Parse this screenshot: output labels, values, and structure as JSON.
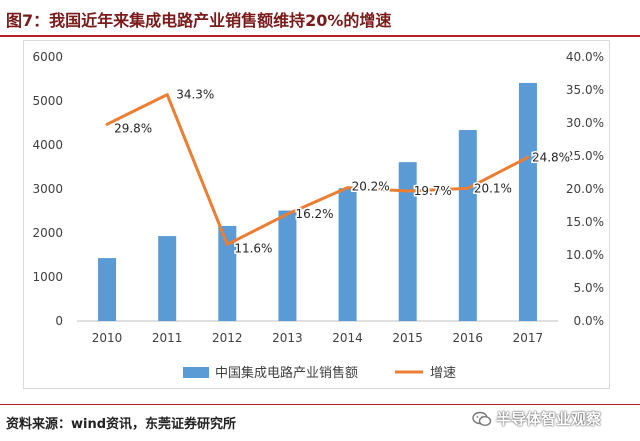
{
  "page": {
    "title": "图7：我国近年来集成电路产业销售额维持20%的增速",
    "source": "资料来源：wind资讯，东莞证券研究所",
    "watermark": "半导体智业观察"
  },
  "colors": {
    "bar": "#5b9bd5",
    "line": "#ed7d31",
    "title_rule": "#b8231f"
  },
  "chart_data": {
    "type": "bar",
    "categories": [
      "2010",
      "2011",
      "2012",
      "2013",
      "2014",
      "2015",
      "2016",
      "2017"
    ],
    "series": [
      {
        "name": "中国集成电路产业销售额",
        "type": "bar",
        "axis": "left",
        "values": [
          1430,
          1930,
          2160,
          2510,
          3020,
          3610,
          4340,
          5410
        ]
      },
      {
        "name": "增速",
        "type": "line",
        "axis": "right",
        "values": [
          29.8,
          34.3,
          11.6,
          16.2,
          20.2,
          19.7,
          20.1,
          24.8
        ],
        "labels": [
          "29.8%",
          "34.3%",
          "11.6%",
          "16.2%",
          "20.2%",
          "19.7%",
          "20.1%",
          "24.8%"
        ]
      }
    ],
    "y_left": {
      "lim": [
        0,
        6000
      ],
      "ticks": [
        "0",
        "1000",
        "2000",
        "3000",
        "4000",
        "5000",
        "6000"
      ]
    },
    "y_right": {
      "lim": [
        0,
        40
      ],
      "ticks": [
        "0.0%",
        "5.0%",
        "10.0%",
        "15.0%",
        "20.0%",
        "25.0%",
        "30.0%",
        "35.0%",
        "40.0%"
      ]
    },
    "grid": false,
    "legend": "bottom"
  }
}
